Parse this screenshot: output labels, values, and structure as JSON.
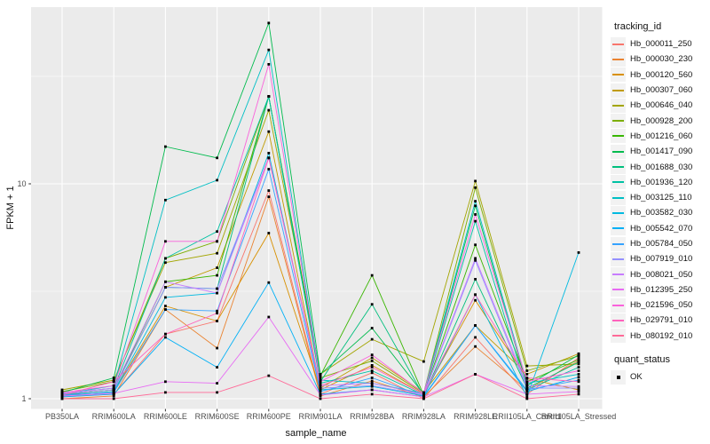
{
  "legend": {
    "color_title": "tracking_id",
    "shape_title": "quant_status",
    "shape_label": "OK"
  },
  "chart_data": {
    "type": "line",
    "title": "",
    "xlabel": "sample_name",
    "ylabel": "FPKM + 1",
    "yscale": "log10",
    "ylim": [
      0.9,
      62
    ],
    "yticks": [
      1,
      10
    ],
    "yminor": [
      3.1623,
      31.623
    ],
    "grid": true,
    "legend_position": "right",
    "panel_bg": "#EBEBEB",
    "grid_color": "#FFFFFF",
    "point_color": "#000000",
    "point_shape": "square",
    "categories": [
      "PB350LA",
      "RRIM600LA",
      "RRIM600LE",
      "RRIM600SE",
      "RRIM600PE",
      "RRIM901LA",
      "RRIM928BA",
      "RRIM928LA",
      "RRIM928LE",
      "RRII105LA_Control",
      "RRII105LA_Stressed"
    ],
    "series": [
      {
        "name": "Hb_000011_250",
        "color": "#F8766D",
        "values": [
          1.02,
          1.05,
          2.0,
          2.3,
          9.3,
          1.05,
          1.32,
          1.0,
          1.93,
          1.05,
          1.55
        ]
      },
      {
        "name": "Hb_000030_230",
        "color": "#EA8331",
        "values": [
          1.0,
          1.03,
          2.6,
          1.72,
          8.7,
          1.03,
          1.21,
          1.02,
          1.75,
          1.1,
          1.5
        ]
      },
      {
        "name": "Hb_000120_560",
        "color": "#D89000",
        "values": [
          1.03,
          1.08,
          2.7,
          2.3,
          5.9,
          1.1,
          1.43,
          1.05,
          2.87,
          1.24,
          1.1
        ]
      },
      {
        "name": "Hb_000307_060",
        "color": "#C09B00",
        "values": [
          1.05,
          1.1,
          3.3,
          4.07,
          17.5,
          1.12,
          1.55,
          1.07,
          2.19,
          1.3,
          1.62
        ]
      },
      {
        "name": "Hb_000646_040",
        "color": "#A3A500",
        "values": [
          1.1,
          1.22,
          4.3,
          4.75,
          22,
          1.3,
          1.89,
          1.49,
          10.3,
          1.42,
          1.45
        ]
      },
      {
        "name": "Hb_000928_200",
        "color": "#7CAE00",
        "values": [
          1.08,
          1.2,
          4.5,
          5.4,
          25.5,
          1.25,
          1.5,
          1.06,
          9.6,
          1.35,
          1.58
        ]
      },
      {
        "name": "Hb_001216_060",
        "color": "#39B600",
        "values": [
          1.05,
          1.1,
          3.5,
          3.75,
          25.5,
          1.28,
          3.75,
          1.04,
          5.2,
          1.2,
          1.52
        ]
      },
      {
        "name": "Hb_001417_090",
        "color": "#00BB4E",
        "values": [
          1.07,
          1.25,
          14.9,
          13.2,
          56,
          1.3,
          2.13,
          1.05,
          7.9,
          1.15,
          1.6
        ]
      },
      {
        "name": "Hb_001688_030",
        "color": "#00BF7D",
        "values": [
          1.04,
          1.1,
          3.3,
          3.25,
          25.5,
          1.2,
          2.75,
          1.03,
          3.6,
          1.12,
          1.48
        ]
      },
      {
        "name": "Hb_001936_120",
        "color": "#00C1A3",
        "values": [
          1.06,
          1.12,
          4.5,
          6.0,
          25.5,
          1.18,
          1.35,
          1.04,
          6.7,
          1.1,
          1.4
        ]
      },
      {
        "name": "Hb_003125_110",
        "color": "#00BFC4",
        "values": [
          1.05,
          1.15,
          8.4,
          10.4,
          42,
          1.22,
          1.18,
          1.06,
          8.3,
          1.18,
          1.3
        ]
      },
      {
        "name": "Hb_003582_030",
        "color": "#00BAE0",
        "values": [
          1.03,
          1.08,
          2.96,
          3.1,
          13.9,
          1.1,
          1.14,
          1.03,
          3.05,
          1.02,
          4.79
        ]
      },
      {
        "name": "Hb_005542_070",
        "color": "#00B0F6",
        "values": [
          1.02,
          1.05,
          1.93,
          1.4,
          3.47,
          1.05,
          1.1,
          1.02,
          2.19,
          1.08,
          1.26
        ]
      },
      {
        "name": "Hb_005784_050",
        "color": "#35A2FF",
        "values": [
          1.04,
          1.07,
          2.6,
          2.56,
          11.7,
          1.08,
          1.25,
          1.03,
          2.19,
          1.1,
          1.22
        ]
      },
      {
        "name": "Hb_007919_010",
        "color": "#9590FF",
        "values": [
          1.05,
          1.1,
          3.3,
          3.25,
          13.2,
          1.12,
          1.15,
          1.04,
          4.4,
          1.12,
          1.12
        ]
      },
      {
        "name": "Hb_008021_050",
        "color": "#C77CFF",
        "values": [
          1.06,
          1.12,
          3.5,
          3.1,
          13.2,
          1.15,
          1.18,
          1.05,
          4.5,
          1.15,
          1.14
        ]
      },
      {
        "name": "Hb_012395_250",
        "color": "#E76BF3",
        "values": [
          1.03,
          1.06,
          1.2,
          1.18,
          2.4,
          1.04,
          1.1,
          1.02,
          1.3,
          1.05,
          1.08
        ]
      },
      {
        "name": "Hb_021596_050",
        "color": "#FA62DB",
        "values": [
          1.07,
          1.15,
          5.4,
          5.4,
          36,
          1.2,
          1.6,
          1.06,
          7.2,
          1.2,
          1.35
        ]
      },
      {
        "name": "Hb_029791_010",
        "color": "#FF62BC",
        "values": [
          1.04,
          1.2,
          2.0,
          2.5,
          13.2,
          1.15,
          1.4,
          1.05,
          3.05,
          1.25,
          1.2
        ]
      },
      {
        "name": "Hb_080192_010",
        "color": "#FF6A98",
        "values": [
          1.0,
          1.0,
          1.07,
          1.07,
          1.28,
          1.0,
          1.05,
          1.0,
          1.3,
          1.0,
          1.05
        ]
      }
    ]
  }
}
